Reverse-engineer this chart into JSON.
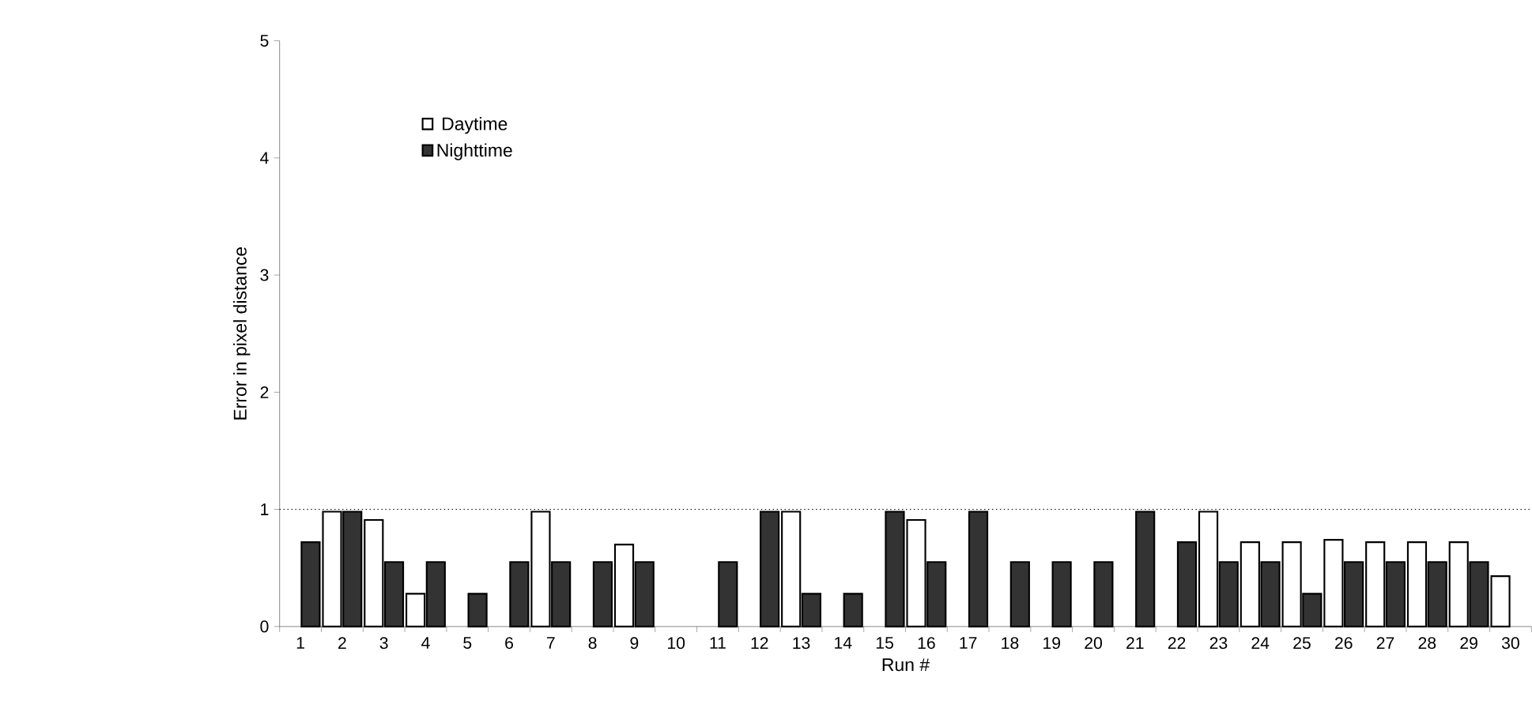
{
  "chart_data": {
    "type": "bar",
    "xlabel": "Run #",
    "ylabel": "Error in pixel distance",
    "categories": [
      "1",
      "2",
      "3",
      "4",
      "5",
      "6",
      "7",
      "8",
      "9",
      "10",
      "11",
      "12",
      "13",
      "14",
      "15",
      "16",
      "17",
      "18",
      "19",
      "20",
      "21",
      "22",
      "23",
      "24",
      "25",
      "26",
      "27",
      "28",
      "29",
      "30"
    ],
    "series": [
      {
        "name": "Daytime",
        "color": "#ffffff",
        "values": [
          null,
          0.98,
          0.91,
          0.28,
          null,
          null,
          0.98,
          null,
          0.7,
          null,
          null,
          null,
          0.98,
          null,
          null,
          0.91,
          null,
          null,
          null,
          null,
          null,
          null,
          0.98,
          0.72,
          0.72,
          0.74,
          0.72,
          0.72,
          0.72,
          0.43
        ]
      },
      {
        "name": "Nighttime",
        "color": "#333333",
        "values": [
          0.72,
          0.98,
          0.55,
          0.55,
          0.28,
          0.55,
          0.55,
          0.55,
          0.55,
          null,
          0.55,
          0.98,
          0.28,
          0.28,
          0.98,
          0.55,
          0.98,
          0.55,
          0.55,
          0.55,
          0.98,
          0.72,
          0.55,
          0.55,
          0.28,
          0.55,
          0.55,
          0.55,
          0.55,
          null
        ]
      }
    ],
    "ylim": [
      0,
      5
    ],
    "yticks": [
      0,
      1,
      2,
      3,
      4,
      5
    ],
    "legend": "top left",
    "ref_lines": [
      {
        "axis": "y",
        "value": 1,
        "line_style": "dotted",
        "color": "#000000"
      }
    ]
  }
}
